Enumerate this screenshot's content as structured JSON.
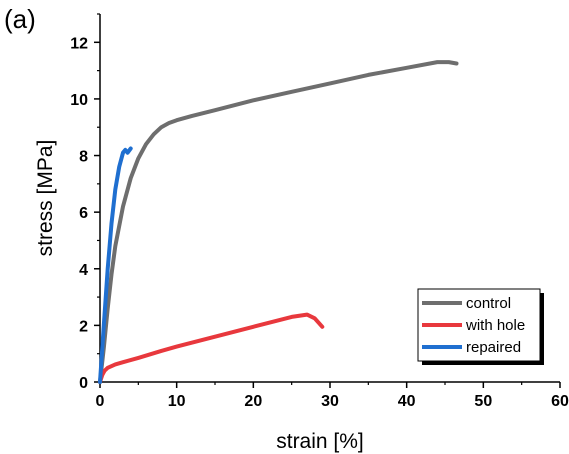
{
  "panel_label": "(a)",
  "chart_data": {
    "type": "line",
    "title": "",
    "xlabel": "strain [%]",
    "ylabel": "stress [MPa]",
    "xlim": [
      0,
      60
    ],
    "ylim": [
      0,
      13
    ],
    "xticks": [
      0,
      10,
      20,
      30,
      40,
      50,
      60
    ],
    "yticks": [
      0,
      2,
      4,
      6,
      8,
      10,
      12
    ],
    "grid": false,
    "legend_position": "bottom-right",
    "series": [
      {
        "name": "control",
        "color": "#6e6e6e",
        "x": [
          0,
          0.5,
          1,
          1.5,
          2,
          3,
          4,
          5,
          6,
          7,
          8,
          9,
          10,
          12,
          15,
          20,
          25,
          30,
          35,
          40,
          44,
          45.5,
          46.5
        ],
        "y": [
          0,
          1.2,
          2.6,
          3.8,
          4.8,
          6.2,
          7.2,
          7.9,
          8.4,
          8.75,
          9.0,
          9.15,
          9.25,
          9.4,
          9.6,
          9.95,
          10.25,
          10.55,
          10.85,
          11.1,
          11.3,
          11.3,
          11.25
        ]
      },
      {
        "name": "with hole",
        "color": "#e8383d",
        "x": [
          0,
          0.3,
          0.6,
          1,
          2,
          3,
          5,
          8,
          10,
          15,
          20,
          25,
          27,
          28,
          29
        ],
        "y": [
          0,
          0.25,
          0.4,
          0.5,
          0.62,
          0.7,
          0.85,
          1.1,
          1.25,
          1.6,
          1.95,
          2.3,
          2.38,
          2.25,
          1.95
        ]
      },
      {
        "name": "repaired",
        "color": "#1f6fd0",
        "x": [
          0,
          0.5,
          1,
          1.5,
          2,
          2.5,
          3,
          3.3,
          3.6,
          4
        ],
        "y": [
          0,
          2.0,
          4.0,
          5.6,
          6.8,
          7.6,
          8.1,
          8.2,
          8.1,
          8.25
        ]
      }
    ]
  }
}
